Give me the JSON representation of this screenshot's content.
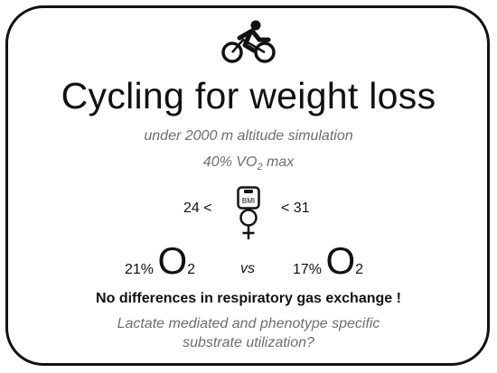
{
  "icons": {
    "cyclist": "cyclist-icon",
    "scale": "bmi-scale-icon",
    "female": "female-symbol-icon"
  },
  "title": "Cycling for weight loss",
  "subtitle_altitude": "under 2000 m altitude simulation",
  "intensity": {
    "prefix": "40% VO",
    "subscript": "2",
    "suffix": " max"
  },
  "bmi": {
    "lower": "24  <",
    "upper": "< 31",
    "scale_label": "BMI"
  },
  "oxygen": {
    "normoxia_pct": "21%",
    "hypoxia_pct": "17%",
    "symbol": "O",
    "subscript": "2",
    "vs": "vs"
  },
  "finding": "No differences in respiratory gas exchange !",
  "question_line1": "Lactate mediated and phenotype specific",
  "question_line2": "substrate utilization?",
  "colors": {
    "text": "#111111",
    "muted": "#6e6e6e",
    "border": "#111111"
  }
}
